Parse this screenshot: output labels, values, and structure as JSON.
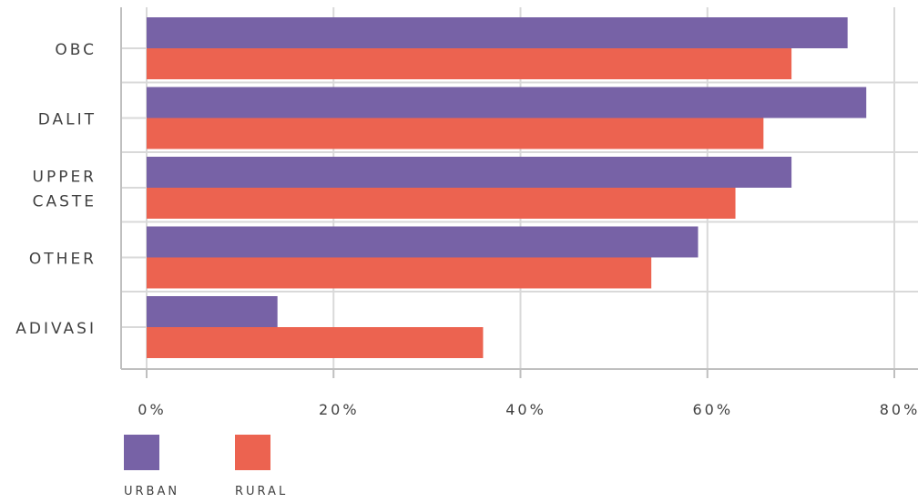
{
  "chart_data": {
    "type": "bar",
    "orientation": "horizontal",
    "categories": [
      [
        "OBC"
      ],
      [
        "DALIT"
      ],
      [
        "UPPER",
        "CASTE"
      ],
      [
        "OTHER"
      ],
      [
        "ADIVASI"
      ]
    ],
    "series": [
      {
        "name": "URBAN",
        "color": "#7762a6",
        "values": [
          75,
          77,
          69,
          59,
          14
        ]
      },
      {
        "name": "RURAL",
        "color": "#ec6350",
        "values": [
          69,
          66,
          63,
          54,
          36
        ]
      }
    ],
    "xlim": [
      0,
      80
    ],
    "xticks": [
      "0%",
      "20%",
      "40%",
      "60%",
      "80%"
    ],
    "tick_values": [
      0,
      20,
      40,
      60,
      80
    ],
    "grid": true,
    "legend_position": "bottom-left",
    "colors": {
      "grid": "#d9d9d9",
      "axis": "#bfbfbf",
      "text": "#404040"
    }
  }
}
